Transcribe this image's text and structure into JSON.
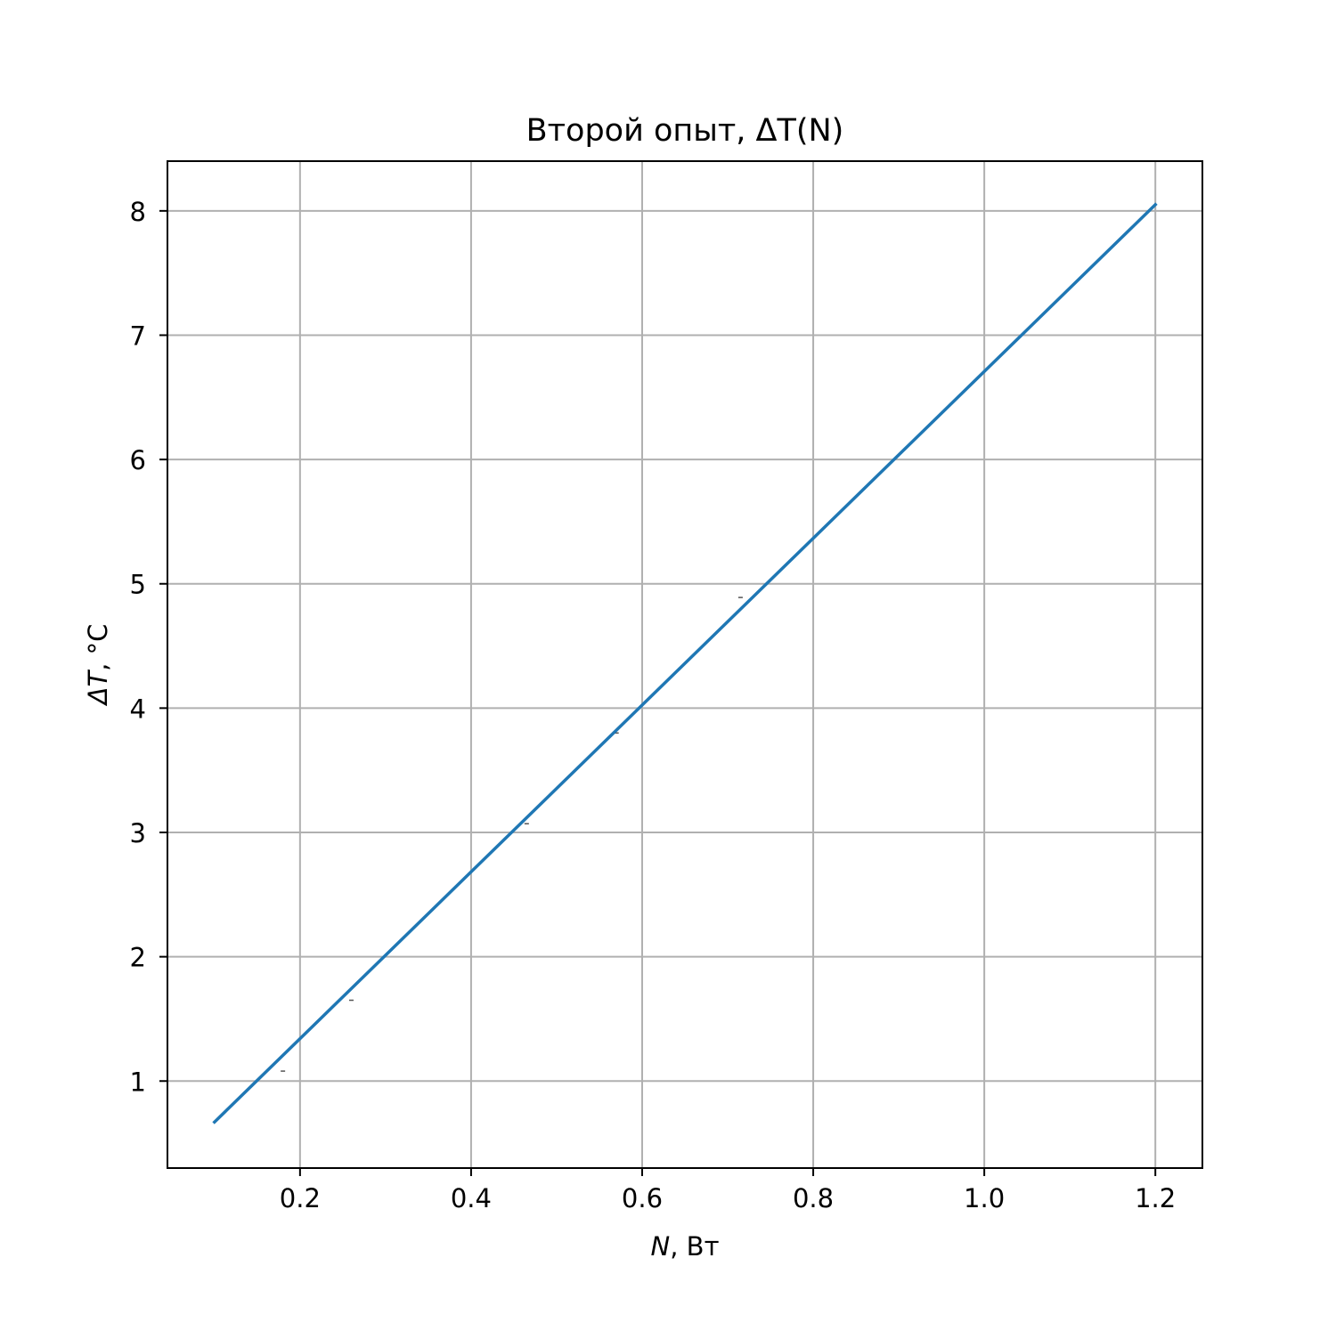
{
  "chart_data": {
    "type": "line",
    "title": "Второй опыт, ΔT(N)",
    "xlabel": {
      "symbol": "N",
      "unit": ", Вт"
    },
    "ylabel": {
      "symbol": "ΔT",
      "unit": ", °C"
    },
    "xlim": [
      0.045,
      1.255
    ],
    "ylim": [
      0.3,
      8.4
    ],
    "x_ticks": [
      0.2,
      0.4,
      0.6,
      0.8,
      1.0,
      1.2
    ],
    "y_ticks": [
      1,
      2,
      3,
      4,
      5,
      6,
      7,
      8
    ],
    "grid": true,
    "legend": "none",
    "series": [
      {
        "color": "#1f77b4",
        "x": [
          0.1,
          1.2
        ],
        "y": [
          0.67,
          8.05
        ]
      }
    ],
    "measured_points": {
      "color": "#555555",
      "x": [
        0.18,
        0.26,
        0.465,
        0.57,
        0.715
      ],
      "y": [
        1.08,
        1.65,
        3.07,
        3.8,
        4.89
      ]
    }
  }
}
